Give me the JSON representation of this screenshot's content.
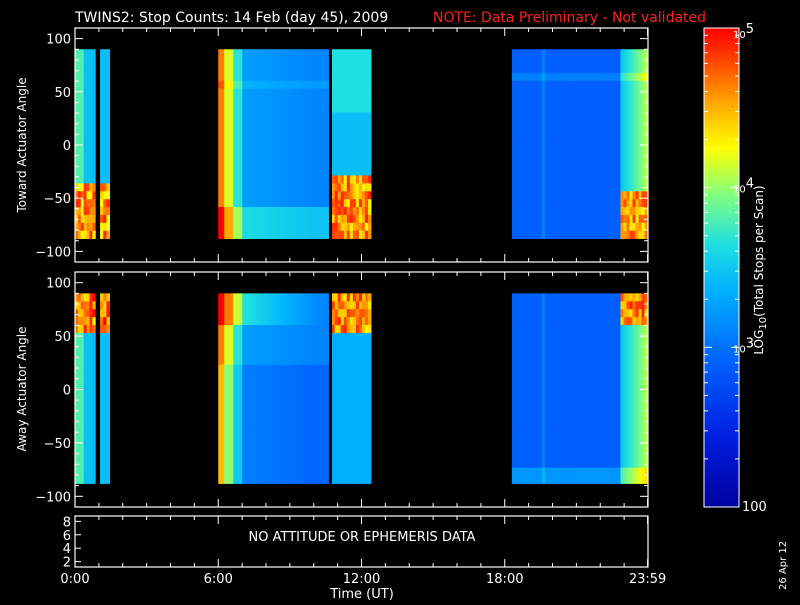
{
  "chart_data": {
    "type": "heatmap",
    "title": "TWINS2: Stop Counts: 14 Feb (day  45), 2009",
    "note": "NOTE: Data Preliminary - Not validated",
    "xlabel": "Time (UT)",
    "x_ticks": [
      "0:00",
      "6:00",
      "12:00",
      "18:00",
      "23:59"
    ],
    "x_tick_hours": [
      0,
      6,
      12,
      18,
      23.983
    ],
    "xlim_hours": [
      0,
      24
    ],
    "panels": [
      {
        "name": "toward",
        "ylabel": "Toward Actuator Angle",
        "ylim": [
          -110,
          110
        ],
        "yticks": [
          100,
          50,
          0,
          -50,
          -100
        ],
        "yticklabels": [
          "100",
          "50",
          "0",
          "−50",
          "−100"
        ],
        "data_range_deg": [
          -88,
          90
        ],
        "profile": "toward"
      },
      {
        "name": "away",
        "ylabel": "Away Actuator Angle",
        "ylim": [
          -110,
          110
        ],
        "yticks": [
          100,
          50,
          0,
          -50,
          -100
        ],
        "yticklabels": [
          "100",
          "50",
          "0",
          "−50",
          "−100"
        ],
        "data_range_deg": [
          -88,
          90
        ],
        "profile": "away"
      }
    ],
    "data_segments_hours": [
      {
        "start": 0.0,
        "end": 0.85
      },
      {
        "start": 1.05,
        "end": 1.45
      },
      {
        "start": 6.0,
        "end": 10.65
      },
      {
        "start": 10.75,
        "end": 12.4
      },
      {
        "start": 18.3,
        "end": 23.983
      }
    ],
    "gap_line_hour": 10.7,
    "attitude_panel": {
      "yticks": [
        8,
        6,
        4,
        2
      ],
      "ylim": [
        1.2,
        8.8
      ],
      "message": "NO ATTITUDE OR EPHEMERIS DATA"
    },
    "colorbar": {
      "label_prefix": "LOG",
      "label_sub": "10",
      "label_suffix": "(Total Stops per Scan)",
      "scale": "log",
      "range": [
        100,
        100000
      ],
      "major_ticks": [
        {
          "value": 100000,
          "base": "10",
          "exp": "5"
        },
        {
          "value": 10000,
          "base": "10",
          "exp": "4"
        },
        {
          "value": 1000,
          "base": "10",
          "exp": "3"
        },
        {
          "value": 100,
          "label": "100"
        }
      ]
    },
    "date_stamp": "26 Apr 12"
  }
}
